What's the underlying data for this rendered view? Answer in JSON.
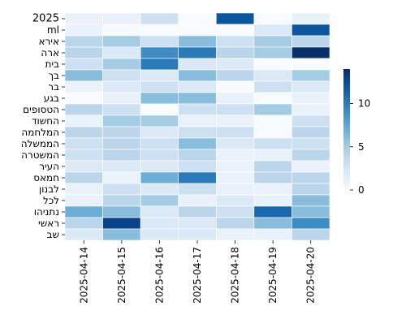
{
  "chart_data": {
    "type": "heatmap",
    "title": "",
    "xlabel": "",
    "ylabel": "",
    "x_categories": [
      "2025-04-14",
      "2025-04-15",
      "2025-04-16",
      "2025-04-17",
      "2025-04-18",
      "2025-04-19",
      "2025-04-20"
    ],
    "y_categories": [
      "2025",
      "ml",
      "אירא",
      "ארה",
      "בית",
      "בך",
      "בר",
      "בגע",
      "הטסופים",
      "החשוד",
      "המלחמה",
      "הממשלה",
      "המשטרה",
      "העיר",
      "חמאס",
      "לבנון",
      "לכל",
      "נתניהו",
      "ראשי",
      "שב"
    ],
    "values": [
      [
        1,
        1,
        3,
        0,
        12,
        0,
        1
      ],
      [
        1,
        0,
        0,
        0,
        0,
        2,
        12
      ],
      [
        4,
        5,
        3,
        6,
        3,
        5,
        4
      ],
      [
        4,
        2,
        9,
        10,
        4,
        5,
        14
      ],
      [
        3,
        5,
        10,
        2,
        2,
        0,
        0
      ],
      [
        6,
        3,
        2,
        6,
        4,
        2,
        5
      ],
      [
        1,
        2,
        3,
        2,
        0,
        3,
        2
      ],
      [
        0,
        1,
        6,
        6,
        1,
        0,
        1
      ],
      [
        4,
        3,
        0,
        3,
        3,
        5,
        1
      ],
      [
        1,
        5,
        5,
        1,
        1,
        0,
        3
      ],
      [
        4,
        4,
        2,
        3,
        3,
        0,
        4
      ],
      [
        3,
        4,
        3,
        6,
        2,
        3,
        3
      ],
      [
        3,
        4,
        3,
        4,
        1,
        1,
        4
      ],
      [
        2,
        2,
        2,
        3,
        1,
        4,
        1
      ],
      [
        4,
        1,
        7,
        10,
        1,
        4,
        4
      ],
      [
        1,
        3,
        2,
        3,
        1,
        1,
        4
      ],
      [
        1,
        4,
        5,
        1,
        2,
        1,
        6
      ],
      [
        7,
        6,
        2,
        4,
        3,
        11,
        6
      ],
      [
        4,
        13,
        2,
        2,
        4,
        6,
        9
      ],
      [
        2,
        6,
        2,
        2,
        1,
        1,
        4
      ]
    ],
    "zlim": [
      0,
      14
    ],
    "colormap": "Blues",
    "colorbar_ticks": [
      0,
      5,
      10
    ],
    "grid": false,
    "legend": "colorbar-right"
  }
}
